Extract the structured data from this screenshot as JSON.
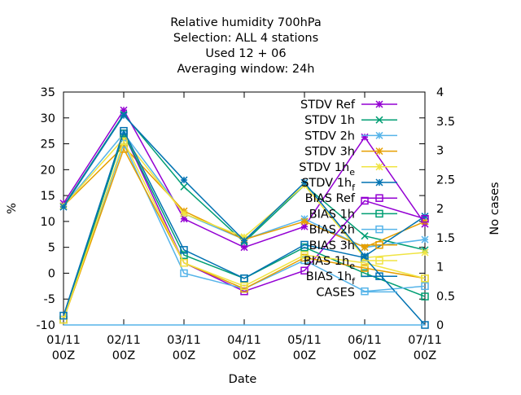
{
  "chart_data": {
    "type": "line",
    "title_lines": [
      "Relative humidity 700hPa",
      "Selection: ALL      4 stations",
      "Used  12 + 06",
      "Averaging window: 24h"
    ],
    "xlabel": "Date",
    "ylabel": "%",
    "y2label": "No cases",
    "categories": [
      "01/11\n00Z",
      "02/11\n00Z",
      "03/11\n00Z",
      "04/11\n00Z",
      "05/11\n00Z",
      "06/11\n00Z",
      "07/11\n00Z"
    ],
    "ylim": [
      -10,
      35
    ],
    "yticks": [
      -10,
      -5,
      0,
      5,
      10,
      15,
      20,
      25,
      30,
      35
    ],
    "y2lim": [
      0,
      4
    ],
    "y2ticks": [
      "0",
      "0.5",
      "1",
      "1.5",
      "2",
      "2.5",
      "3",
      "3.5",
      "4"
    ],
    "grid": false,
    "legend_position": "top-right",
    "series": [
      {
        "name": "STDV Ref",
        "color": "#9400d3",
        "marker": "star",
        "axis": "y",
        "values": [
          13.5,
          31.5,
          10.5,
          5.0,
          9.0,
          26.3,
          9.5
        ]
      },
      {
        "name": "STDV 1h",
        "color": "#009e73",
        "marker": "x",
        "axis": "y",
        "values": [
          13.0,
          30.7,
          16.7,
          6.0,
          17.0,
          7.2,
          4.5
        ]
      },
      {
        "name": "STDV 2h",
        "color": "#56b4e9",
        "marker": "star",
        "axis": "y",
        "values": [
          13.0,
          27.0,
          11.5,
          6.5,
          10.5,
          5.0,
          6.5
        ]
      },
      {
        "name": "STDV 3h",
        "color": "#e69f00",
        "marker": "star",
        "axis": "y",
        "values": [
          13.0,
          24.5,
          12.0,
          6.5,
          10.0,
          5.0,
          10.0
        ]
      },
      {
        "name": "STDV 1h_e",
        "color": "#f0e442",
        "marker": "star",
        "axis": "y",
        "values": [
          13.0,
          26.0,
          11.5,
          7.0,
          17.0,
          3.0,
          4.0
        ]
      },
      {
        "name": "STDV 1h_f",
        "color": "#0072b2",
        "marker": "star",
        "axis": "y",
        "values": [
          12.8,
          30.5,
          18.0,
          6.3,
          17.5,
          3.3,
          11.0
        ]
      },
      {
        "name": "BIAS Ref",
        "color": "#9400d3",
        "marker": "box",
        "axis": "y",
        "values": [
          -9.0,
          27.0,
          2.0,
          -3.5,
          0.5,
          14.0,
          10.5
        ]
      },
      {
        "name": "BIAS 1h",
        "color": "#009e73",
        "marker": "box",
        "axis": "y",
        "values": [
          -9.0,
          27.0,
          3.5,
          -1.0,
          5.0,
          0.0,
          -4.5
        ]
      },
      {
        "name": "BIAS 2h",
        "color": "#56b4e9",
        "marker": "box",
        "axis": "y",
        "values": [
          -9.0,
          25.0,
          0.0,
          -3.0,
          2.5,
          -3.5,
          -2.5
        ]
      },
      {
        "name": "BIAS 3h",
        "color": "#e69f00",
        "marker": "box",
        "axis": "y",
        "values": [
          -9.0,
          24.0,
          2.0,
          -3.0,
          3.0,
          1.0,
          -1.0
        ]
      },
      {
        "name": "BIAS 1h_e",
        "color": "#f0e442",
        "marker": "box",
        "axis": "y",
        "values": [
          -9.0,
          25.5,
          2.0,
          -2.5,
          3.5,
          2.0,
          -1.0
        ]
      },
      {
        "name": "BIAS 1h_f",
        "color": "#0072b2",
        "marker": "box",
        "axis": "y",
        "values": [
          -8.2,
          27.5,
          4.5,
          -1.0,
          5.5,
          3.0,
          -10.0
        ]
      },
      {
        "name": "CASES",
        "color": "#56b4e9",
        "marker": "none",
        "axis": "y2",
        "values": [
          0,
          0,
          0,
          0,
          0,
          0,
          0
        ]
      }
    ]
  }
}
